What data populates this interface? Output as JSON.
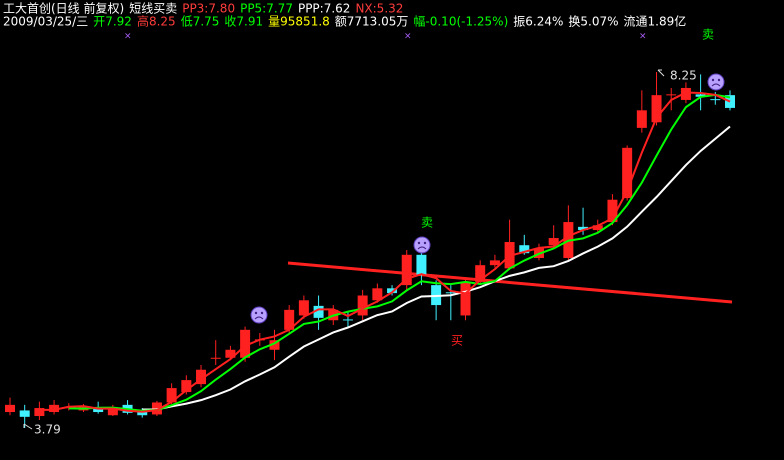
{
  "header": {
    "line1": [
      {
        "text": "工大首创(日线 前复权)",
        "color": "#ffffff"
      },
      {
        "text": "短线买卖",
        "color": "#ffffff"
      },
      {
        "text": "PP3:7.80",
        "color": "#ff3c3c"
      },
      {
        "text": "PP5:7.77",
        "color": "#00ff00"
      },
      {
        "text": "PPP:7.62",
        "color": "#ffffff"
      },
      {
        "text": "NX:5.32",
        "color": "#ff3c3c"
      }
    ],
    "line2": [
      {
        "text": "2009/03/25/三",
        "color": "#ffffff"
      },
      {
        "text": "开7.92",
        "color": "#00ff00"
      },
      {
        "text": "高8.25",
        "color": "#ff3c3c"
      },
      {
        "text": "低7.75",
        "color": "#00ff00"
      },
      {
        "text": "收7.91",
        "color": "#00ff00"
      },
      {
        "text": "量95851.8",
        "color": "#ffff00"
      },
      {
        "text": "额7713.05万",
        "color": "#ffffff"
      },
      {
        "text": "幅-0.10(-1.25%)",
        "color": "#00ff00"
      },
      {
        "text": "振6.24%",
        "color": "#ffffff"
      },
      {
        "text": "换5.07%",
        "color": "#ffffff"
      },
      {
        "text": "流通1.89亿",
        "color": "#ffffff"
      }
    ]
  },
  "chart_data": {
    "type": "candlestick",
    "up_color": "#ff2020",
    "down_color": "#40f0ff",
    "max_label": 8.25,
    "min_label": 3.79,
    "sell": "卖",
    "buy": "买",
    "open": [
      3.99,
      4.01,
      3.94,
      3.99,
      4.04,
      4.01,
      4.05,
      3.95,
      4.08,
      4.01,
      3.96,
      4.11,
      4.24,
      4.34,
      4.66,
      4.67,
      4.67,
      4.89,
      4.77,
      5.02,
      5.2,
      5.32,
      5.14,
      5.15,
      5.2,
      5.39,
      5.54,
      5.58,
      5.96,
      5.58,
      5.49,
      5.2,
      5.62,
      5.83,
      5.79,
      6.08,
      5.92,
      6.08,
      5.92,
      6.31,
      6.27,
      6.37,
      6.67,
      7.55,
      7.62,
      7.96,
      7.9,
      7.97,
      7.91,
      7.96
    ],
    "high": [
      4.17,
      4.08,
      4.12,
      4.14,
      4.1,
      4.09,
      4.12,
      4.08,
      4.14,
      4.04,
      4.13,
      4.35,
      4.45,
      4.58,
      4.89,
      4.82,
      5.06,
      4.98,
      5.02,
      5.33,
      5.45,
      5.45,
      5.33,
      5.24,
      5.52,
      5.6,
      5.58,
      6.02,
      6.15,
      5.64,
      5.58,
      5.68,
      5.89,
      5.96,
      6.4,
      6.21,
      6.1,
      6.33,
      6.58,
      6.55,
      6.4,
      6.72,
      7.33,
      8.02,
      8.25,
      8.05,
      8.12,
      8.22,
      8.0,
      8.02
    ],
    "low": [
      3.95,
      3.79,
      3.89,
      3.96,
      4.01,
      3.99,
      3.97,
      3.94,
      3.96,
      3.92,
      3.94,
      4.09,
      4.21,
      4.3,
      4.58,
      4.64,
      4.62,
      4.82,
      4.64,
      4.98,
      5.16,
      5.02,
      5.08,
      5.05,
      5.14,
      5.36,
      5.45,
      5.52,
      5.58,
      5.14,
      5.14,
      5.14,
      5.58,
      5.8,
      5.77,
      5.96,
      5.89,
      6.04,
      5.89,
      6.21,
      6.24,
      6.33,
      6.64,
      7.49,
      7.58,
      7.77,
      7.86,
      7.77,
      7.84,
      7.77
    ],
    "close": [
      4.08,
      3.93,
      4.04,
      4.08,
      4.05,
      4.06,
      3.99,
      4.05,
      3.98,
      3.95,
      4.11,
      4.29,
      4.39,
      4.52,
      4.67,
      4.77,
      5.02,
      4.9,
      4.89,
      5.27,
      5.39,
      5.17,
      5.27,
      5.14,
      5.45,
      5.54,
      5.48,
      5.96,
      5.71,
      5.33,
      5.48,
      5.62,
      5.83,
      5.89,
      6.12,
      5.98,
      6.04,
      6.17,
      6.37,
      6.27,
      6.33,
      6.65,
      7.3,
      7.77,
      7.96,
      7.97,
      8.05,
      7.94,
      7.9,
      7.8
    ]
  }
}
